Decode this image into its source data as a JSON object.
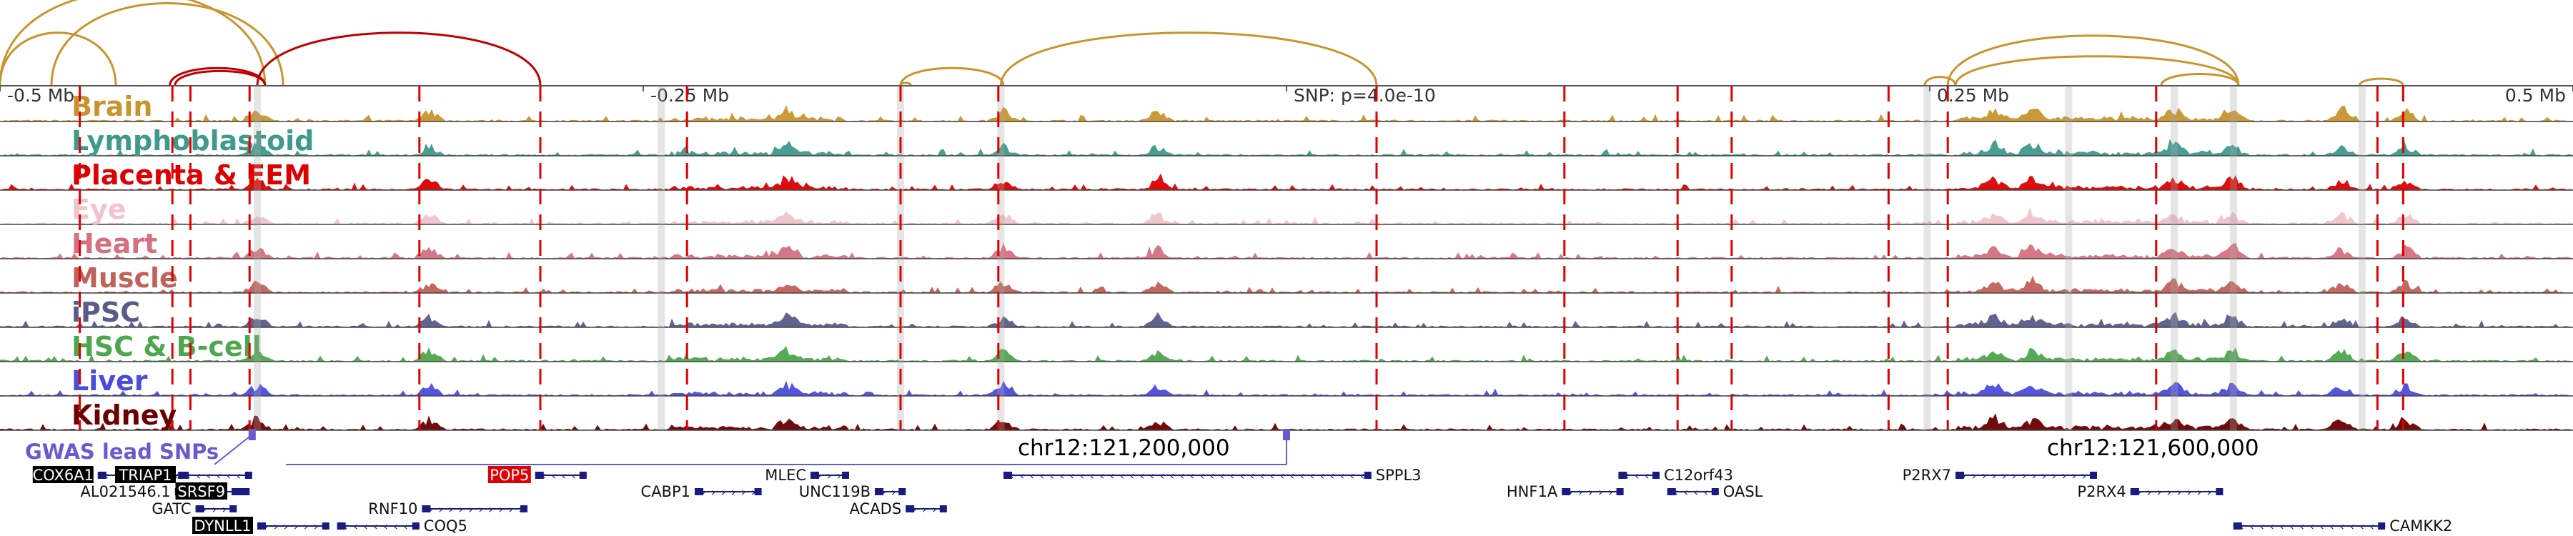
{
  "axis": {
    "ticks": [
      {
        "label": "-0.5 Mb",
        "pos": 0.0
      },
      {
        "label": "-0.25 Mb",
        "pos": 0.25
      },
      {
        "label": "SNP: p=4.0e-10",
        "pos": 0.5
      },
      {
        "label": "0.25 Mb",
        "pos": 0.75
      },
      {
        "label": "0.5 Mb",
        "pos": 1.0
      }
    ]
  },
  "tracks": [
    {
      "label": "Brain",
      "color": "#c8952d"
    },
    {
      "label": "Lymphoblastoid",
      "color": "#3f9a8c"
    },
    {
      "label": "Placenta & EEM",
      "color": "#dd0000"
    },
    {
      "label": "Eye",
      "color": "#f0c3cd"
    },
    {
      "label": "Heart",
      "color": "#d4707f"
    },
    {
      "label": "Muscle",
      "color": "#c0625a"
    },
    {
      "label": "iPSC",
      "color": "#5a5b8a"
    },
    {
      "label": "HSC & B-cell",
      "color": "#4ea64e"
    },
    {
      "label": "Liver",
      "color": "#4b4bdd"
    },
    {
      "label": "Kidney",
      "color": "#6b0000"
    }
  ],
  "gwas": {
    "label": "GWAS lead SNPs",
    "color": "#6a5acd",
    "snp_positions": [
      0.098,
      0.5
    ]
  },
  "coordinates": [
    {
      "label": "chr12:121,200,000",
      "pos": 0.39
    },
    {
      "label": "chr12:121,600,000",
      "pos": 0.79
    }
  ],
  "red_dashed_lines": [
    0.031,
    0.067,
    0.074,
    0.097,
    0.163,
    0.21,
    0.267,
    0.35,
    0.388,
    0.535,
    0.608,
    0.652,
    0.673,
    0.734,
    0.757,
    0.838,
    0.924,
    0.934
  ],
  "grey_highlights": [
    0.1,
    0.257,
    0.35,
    0.389,
    0.749,
    0.804,
    0.845,
    0.868,
    0.918
  ],
  "arcs": [
    {
      "from": 0.0,
      "to": 0.045,
      "color": "#c8952d",
      "height": 0.9
    },
    {
      "from": 0.0,
      "to": 0.103,
      "color": "#c8952d",
      "height": 1.6
    },
    {
      "from": 0.02,
      "to": 0.11,
      "color": "#c8952d",
      "height": 1.4
    },
    {
      "from": 0.066,
      "to": 0.103,
      "color": "#c00000",
      "height": 0.3
    },
    {
      "from": 0.068,
      "to": 0.103,
      "color": "#c00000",
      "height": 0.25
    },
    {
      "from": 0.1,
      "to": 0.21,
      "color": "#c00000",
      "height": 0.9
    },
    {
      "from": 0.35,
      "to": 0.39,
      "color": "#c8952d",
      "height": 0.3
    },
    {
      "from": 0.35,
      "to": 0.354,
      "color": "#c8952d",
      "height": 0.05
    },
    {
      "from": 0.389,
      "to": 0.535,
      "color": "#c8952d",
      "height": 0.9
    },
    {
      "from": 0.757,
      "to": 0.87,
      "color": "#c8952d",
      "height": 0.85
    },
    {
      "from": 0.76,
      "to": 0.87,
      "color": "#c8952d",
      "height": 0.5
    },
    {
      "from": 0.84,
      "to": 0.87,
      "color": "#c8952d",
      "height": 0.2
    },
    {
      "from": 0.917,
      "to": 0.934,
      "color": "#c8952d",
      "height": 0.12
    },
    {
      "from": 0.748,
      "to": 0.76,
      "color": "#c8952d",
      "height": 0.15
    }
  ],
  "genes": [
    {
      "name": "COX6A1",
      "row": 0,
      "start": 0.038,
      "end": 0.072,
      "strand": "-",
      "boxed": true
    },
    {
      "name": "TRIAP1",
      "row": 0,
      "start": 0.07,
      "end": 0.098,
      "strand": "-",
      "boxed": true
    },
    {
      "name": "POP5",
      "row": 0,
      "start": 0.208,
      "end": 0.228,
      "strand": "-",
      "red": true
    },
    {
      "name": "MLEC",
      "row": 0,
      "start": 0.315,
      "end": 0.33,
      "strand": "+"
    },
    {
      "name": "SPPL3",
      "row": 0,
      "start": 0.39,
      "end": 0.533,
      "strand": "-"
    },
    {
      "name": "C12orf43",
      "row": 0,
      "start": 0.629,
      "end": 0.645,
      "strand": "-"
    },
    {
      "name": "P2RX7",
      "row": 0,
      "start": 0.76,
      "end": 0.815,
      "strand": "+"
    },
    {
      "name": "AL021546.1",
      "row": 1,
      "start": 0.068,
      "end": 0.096,
      "strand": "+"
    },
    {
      "name": "SRSF9",
      "row": 1,
      "start": 0.09,
      "end": 0.097,
      "strand": "-",
      "boxed": true
    },
    {
      "name": "CABP1",
      "row": 1,
      "start": 0.27,
      "end": 0.296,
      "strand": "+"
    },
    {
      "name": "UNC119B",
      "row": 1,
      "start": 0.34,
      "end": 0.352,
      "strand": "+"
    },
    {
      "name": "HNF1A",
      "row": 1,
      "start": 0.607,
      "end": 0.631,
      "strand": "+"
    },
    {
      "name": "OASL",
      "row": 1,
      "start": 0.648,
      "end": 0.668,
      "strand": "-"
    },
    {
      "name": "P2RX4",
      "row": 1,
      "start": 0.828,
      "end": 0.864,
      "strand": "+"
    },
    {
      "name": "GATC",
      "row": 2,
      "start": 0.076,
      "end": 0.092,
      "strand": "+"
    },
    {
      "name": "RNF10",
      "row": 2,
      "start": 0.164,
      "end": 0.205,
      "strand": "+"
    },
    {
      "name": "ACADS",
      "row": 2,
      "start": 0.352,
      "end": 0.368,
      "strand": "+"
    },
    {
      "name": "DYNLL1",
      "row": 3,
      "start": 0.1,
      "end": 0.128,
      "strand": "+",
      "boxed": true
    },
    {
      "name": "COQ5",
      "row": 3,
      "start": 0.131,
      "end": 0.163,
      "strand": "-"
    },
    {
      "name": "CAMKK2",
      "row": 3,
      "start": 0.868,
      "end": 0.927,
      "strand": "-"
    }
  ]
}
